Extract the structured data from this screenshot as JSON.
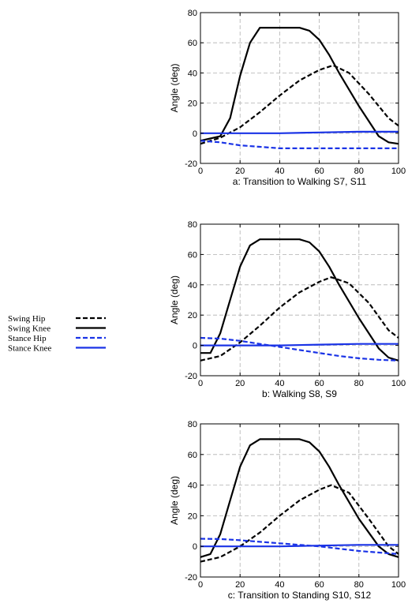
{
  "legend": {
    "entries": [
      {
        "label": "Swing Hip",
        "color": "#000000",
        "dash": true
      },
      {
        "label": "Swing Knee",
        "color": "#000000",
        "dash": false
      },
      {
        "label": "Stance Hip",
        "color": "#1a33e6",
        "dash": true
      },
      {
        "label": "Stance Knee",
        "color": "#1a33e6",
        "dash": false
      }
    ]
  },
  "chart_data": [
    {
      "type": "line",
      "title": "a: Transition to Walking S7, S11",
      "xlabel": "a: Transition to Walking S7, S11",
      "ylabel": "Angle (deg)",
      "xlim": [
        0,
        100
      ],
      "ylim": [
        -20,
        80
      ],
      "xticks": [
        0,
        20,
        40,
        60,
        80,
        100
      ],
      "yticks": [
        -20,
        0,
        20,
        40,
        60,
        80
      ],
      "grid": true,
      "series": [
        {
          "name": "Swing Hip",
          "color": "#000000",
          "dash": true,
          "x": [
            0,
            10,
            20,
            30,
            40,
            50,
            60,
            67,
            75,
            85,
            95,
            100
          ],
          "y": [
            -7,
            -3,
            4,
            14,
            25,
            35,
            42,
            45,
            40,
            26,
            10,
            5
          ]
        },
        {
          "name": "Swing Knee",
          "color": "#000000",
          "dash": false,
          "x": [
            0,
            10,
            15,
            20,
            25,
            30,
            50,
            55,
            60,
            65,
            70,
            80,
            90,
            95,
            100
          ],
          "y": [
            -5,
            -2,
            10,
            38,
            60,
            70,
            70,
            68,
            62,
            52,
            40,
            18,
            -2,
            -6,
            -7
          ]
        },
        {
          "name": "Stance Hip",
          "color": "#1a33e6",
          "dash": true,
          "x": [
            0,
            10,
            20,
            30,
            40,
            60,
            80,
            100
          ],
          "y": [
            -5,
            -6,
            -8,
            -9,
            -10,
            -10,
            -10,
            -10
          ]
        },
        {
          "name": "Stance Knee",
          "color": "#1a33e6",
          "dash": false,
          "x": [
            0,
            20,
            40,
            60,
            80,
            100
          ],
          "y": [
            0,
            0,
            0,
            0.5,
            1,
            1
          ]
        }
      ]
    },
    {
      "type": "line",
      "title": "b: Walking S8, S9",
      "xlabel": "b: Walking S8, S9",
      "ylabel": "Angle (deg)",
      "xlim": [
        0,
        100
      ],
      "ylim": [
        -20,
        80
      ],
      "xticks": [
        0,
        20,
        40,
        60,
        80,
        100
      ],
      "yticks": [
        -20,
        0,
        20,
        40,
        60,
        80
      ],
      "grid": true,
      "series": [
        {
          "name": "Swing Hip",
          "color": "#000000",
          "dash": true,
          "x": [
            0,
            10,
            20,
            30,
            40,
            50,
            60,
            66,
            75,
            85,
            95,
            100
          ],
          "y": [
            -10,
            -7,
            2,
            13,
            25,
            35,
            42,
            45,
            41,
            28,
            10,
            5
          ]
        },
        {
          "name": "Swing Knee",
          "color": "#000000",
          "dash": false,
          "x": [
            0,
            5,
            10,
            15,
            20,
            25,
            30,
            50,
            55,
            60,
            65,
            70,
            80,
            90,
            95,
            100
          ],
          "y": [
            -5,
            -5,
            8,
            30,
            52,
            66,
            70,
            70,
            68,
            62,
            52,
            40,
            18,
            -2,
            -8,
            -10
          ]
        },
        {
          "name": "Stance Hip",
          "color": "#1a33e6",
          "dash": true,
          "x": [
            0,
            10,
            20,
            30,
            40,
            50,
            60,
            70,
            80,
            90,
            100
          ],
          "y": [
            5,
            4.5,
            3,
            1,
            -1,
            -3,
            -5,
            -7,
            -8.5,
            -9.5,
            -10
          ]
        },
        {
          "name": "Stance Knee",
          "color": "#1a33e6",
          "dash": false,
          "x": [
            0,
            20,
            40,
            60,
            80,
            100
          ],
          "y": [
            0,
            0,
            0,
            0.5,
            1,
            1
          ]
        }
      ]
    },
    {
      "type": "line",
      "title": "c: Transition to Standing S10, S12",
      "xlabel": "c: Transition to Standing S10, S12",
      "ylabel": "Angle (deg)",
      "xlim": [
        0,
        100
      ],
      "ylim": [
        -20,
        80
      ],
      "xticks": [
        0,
        20,
        40,
        60,
        80,
        100
      ],
      "yticks": [
        -20,
        0,
        20,
        40,
        60,
        80
      ],
      "grid": true,
      "series": [
        {
          "name": "Swing Hip",
          "color": "#000000",
          "dash": true,
          "x": [
            0,
            10,
            20,
            30,
            40,
            50,
            60,
            66,
            75,
            85,
            95,
            100
          ],
          "y": [
            -10,
            -7,
            0,
            9,
            20,
            30,
            37,
            40,
            35,
            18,
            0,
            -5
          ]
        },
        {
          "name": "Swing Knee",
          "color": "#000000",
          "dash": false,
          "x": [
            0,
            5,
            10,
            15,
            20,
            25,
            30,
            50,
            55,
            60,
            65,
            70,
            80,
            90,
            95,
            100
          ],
          "y": [
            -7,
            -5,
            8,
            30,
            52,
            66,
            70,
            70,
            68,
            62,
            52,
            40,
            18,
            0,
            -5,
            -7
          ]
        },
        {
          "name": "Stance Hip",
          "color": "#1a33e6",
          "dash": true,
          "x": [
            0,
            10,
            20,
            30,
            40,
            50,
            60,
            70,
            80,
            90,
            100
          ],
          "y": [
            5,
            4.8,
            4,
            3,
            2,
            1,
            0,
            -1.5,
            -3,
            -4,
            -5
          ]
        },
        {
          "name": "Stance Knee",
          "color": "#1a33e6",
          "dash": false,
          "x": [
            0,
            20,
            40,
            60,
            80,
            100
          ],
          "y": [
            0,
            0,
            0,
            0.5,
            1,
            1
          ]
        }
      ]
    }
  ]
}
